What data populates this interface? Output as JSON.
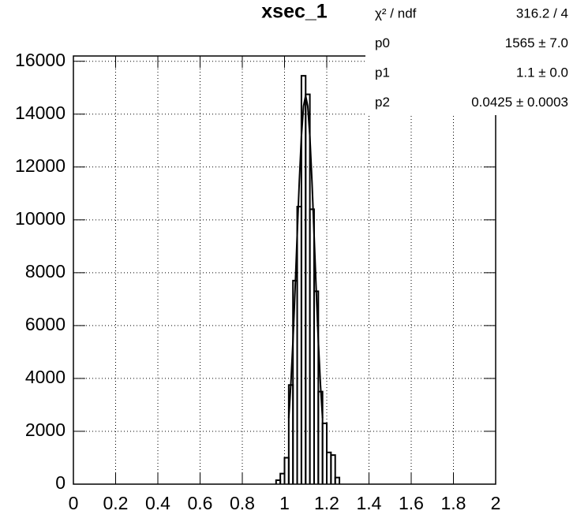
{
  "chart_data": {
    "type": "histogram",
    "title": "xsec_1",
    "bins": [
      0.96,
      0.98,
      1.0,
      1.02,
      1.04,
      1.06,
      1.08,
      1.1,
      1.12,
      1.14,
      1.16,
      1.18,
      1.2,
      1.22,
      1.24,
      1.26
    ],
    "values": [
      150,
      400,
      1000,
      3750,
      7700,
      10500,
      15450,
      14750,
      10400,
      7300,
      3500,
      2300,
      1200,
      1100,
      250
    ],
    "color": "#000000",
    "fit": {
      "name": "gaus",
      "color": "#000000",
      "x": [
        1.02,
        1.03,
        1.04,
        1.05,
        1.06,
        1.07,
        1.08,
        1.09,
        1.1,
        1.11,
        1.12,
        1.13,
        1.14,
        1.15,
        1.16,
        1.17,
        1.18
      ],
      "values": [
        2500,
        3790,
        5420,
        7360,
        9440,
        11460,
        13160,
        14300,
        14700,
        14300,
        13160,
        11460,
        9440,
        7360,
        5420,
        3790,
        2500
      ]
    },
    "xlim": [
      0,
      2
    ],
    "xticks": [
      0,
      0.2,
      0.4,
      0.6,
      0.8,
      1,
      1.2,
      1.4,
      1.6,
      1.8,
      2
    ],
    "ylim": [
      0,
      16200
    ],
    "yticks": [
      0,
      2000,
      4000,
      6000,
      8000,
      10000,
      12000,
      14000,
      16000
    ],
    "grid": true,
    "stats": [
      [
        "χ² / ndf",
        "316.2 / 4"
      ],
      [
        "p0",
        "1565 ± 7.0"
      ],
      [
        "p1",
        "1.1 ± 0.0"
      ],
      [
        "p2",
        "0.0425 ± 0.0003"
      ]
    ]
  }
}
